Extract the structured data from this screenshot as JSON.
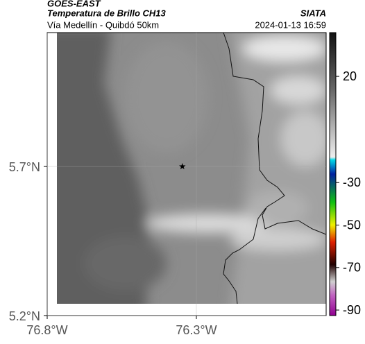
{
  "header": {
    "source": "GOES-EAST",
    "title": "Temperatura de Brillo CH13",
    "agency": "SIATA",
    "subtitle": "Vía Medellín - Quibdó 50km",
    "datetime": "2024-01-13 16:59"
  },
  "map": {
    "xlim": [
      -76.8,
      -75.865
    ],
    "ylim": [
      5.2,
      6.149
    ],
    "xticks": [
      {
        "value": -76.8,
        "label": "76.8°W"
      },
      {
        "value": -76.3,
        "label": "76.3°W"
      }
    ],
    "yticks": [
      {
        "value": 5.7,
        "label": "5.7°N"
      },
      {
        "value": 5.2,
        "label": "5.2°N"
      }
    ],
    "grid": true,
    "marker": {
      "lon": -76.347,
      "lat": 5.7
    }
  },
  "colorbar": {
    "lim": [
      -92.6,
      40.6
    ],
    "ticks": [
      20,
      -30,
      -50,
      -70,
      -90
    ]
  }
}
